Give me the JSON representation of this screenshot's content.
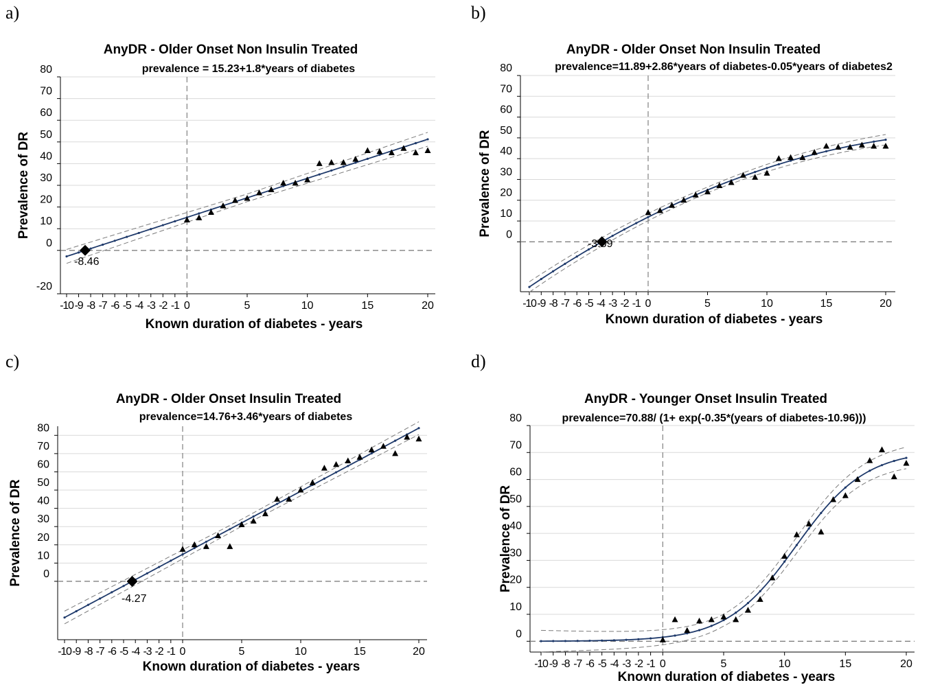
{
  "panels": [
    {
      "letter": "a)"
    },
    {
      "letter": "b)"
    },
    {
      "letter": "c)"
    },
    {
      "letter": "d)"
    }
  ],
  "colors": {
    "fit_line": "#1f3a6b",
    "ci_line": "#7a7a7a",
    "grid": "#d9d9d9",
    "observed_marker": "#000000",
    "reference_line": "#808080"
  },
  "chart_data": [
    {
      "type": "line",
      "title": "AnyDR - Older Onset Non Insulin Treated",
      "subtitle": "prevalence = 15.23+1.8*years of diabetes",
      "xlabel": "Known duration of diabetes - years",
      "ylabel": "Prevalence of DR",
      "xlim": [
        -10,
        20
      ],
      "ylim": [
        -20,
        80
      ],
      "x_ticks": [
        -10,
        -9,
        -8,
        -7,
        -6,
        -5,
        -4,
        -3,
        -2,
        -1,
        0,
        5,
        10,
        15,
        20
      ],
      "x_tick_labels": [
        "-10",
        "-9",
        "-8",
        "-7",
        "-6",
        "-5",
        "-4",
        "-3",
        "-2",
        "-1",
        "0",
        "5",
        "10",
        "15",
        "20"
      ],
      "y_ticks": [
        -20,
        0,
        10,
        20,
        30,
        40,
        50,
        60,
        70,
        80
      ],
      "y_tick_labels": [
        "-20",
        "0",
        "10",
        "20",
        "30",
        "40",
        "50",
        "60",
        "70",
        "80"
      ],
      "grid": true,
      "reference_lines": {
        "x": 0,
        "y": 0
      },
      "annotation": {
        "x": -8.46,
        "y": 0,
        "label": "-8.46"
      },
      "fit_model": "linear",
      "series": [
        {
          "kind": "fit",
          "coefficients": [
            15.23,
            1.8
          ],
          "x_from": -10,
          "x_to": 20,
          "ci_width": 3.2
        },
        {
          "kind": "observed",
          "x": [
            0,
            1,
            2,
            3,
            4,
            5,
            6,
            7,
            8,
            9,
            10,
            11,
            12,
            13,
            14,
            15,
            16,
            17,
            18,
            19,
            20
          ],
          "y": [
            14,
            15,
            17.5,
            20.5,
            23,
            24,
            26.5,
            28,
            31,
            31,
            32.5,
            40,
            40.5,
            40.5,
            42,
            46,
            45.5,
            45,
            47,
            45,
            46
          ]
        }
      ]
    },
    {
      "type": "line",
      "title": "AnyDR - Older Onset Non Insulin Treated",
      "subtitle": "prevalence=11.89+2.86*years of diabetes-0.05*years of diabetes2",
      "xlabel": "Known duration of diabetes - years",
      "ylabel": "Prevalence of DR",
      "xlim": [
        -10,
        20
      ],
      "ylim": [
        -24,
        80
      ],
      "x_ticks": [
        -10,
        -9,
        -8,
        -7,
        -6,
        -5,
        -4,
        -3,
        -2,
        -1,
        0,
        5,
        10,
        15,
        20
      ],
      "x_tick_labels": [
        "-10",
        "-9",
        "-8",
        "-7",
        "-6",
        "-5",
        "-4",
        "-3",
        "-2",
        "-1",
        "0",
        "5",
        "10",
        "15",
        "20"
      ],
      "y_ticks": [
        0,
        10,
        20,
        30,
        40,
        50,
        60,
        70,
        80
      ],
      "y_tick_labels": [
        "0",
        "10",
        "20",
        "30",
        "40",
        "50",
        "60",
        "70",
        "80"
      ],
      "grid": true,
      "reference_lines": {
        "x": 0,
        "y": 0
      },
      "annotation": {
        "x": -3.89,
        "y": 0,
        "label": "-3.89"
      },
      "fit_model": "quadratic",
      "series": [
        {
          "kind": "fit",
          "coefficients": [
            11.89,
            2.86,
            -0.05
          ],
          "x_from": -10,
          "x_to": 20,
          "ci_width": 2.5
        },
        {
          "kind": "observed",
          "x": [
            0,
            1,
            2,
            3,
            4,
            5,
            6,
            7,
            8,
            9,
            10,
            11,
            12,
            13,
            14,
            15,
            16,
            17,
            18,
            19,
            20
          ],
          "y": [
            14,
            15,
            17.5,
            20,
            22.5,
            24,
            27,
            28.5,
            32,
            31,
            33,
            40,
            40.5,
            40.5,
            43,
            46,
            45.5,
            45.5,
            46.5,
            46,
            46
          ]
        }
      ]
    },
    {
      "type": "line",
      "title": "AnyDR - Older Onset Insulin Treated",
      "subtitle": "prevalence=14.76+3.46*years of diabetes",
      "xlabel": "Known duration of diabetes - years",
      "ylabel": "Prevalence of DR",
      "xlim": [
        -10,
        20
      ],
      "ylim": [
        -32,
        85
      ],
      "x_ticks": [
        -10,
        -9,
        -8,
        -7,
        -6,
        -5,
        -4,
        -3,
        -2,
        -1,
        0,
        5,
        10,
        15,
        20
      ],
      "x_tick_labels": [
        "-10",
        "-9",
        "-8",
        "-7",
        "-6",
        "-5",
        "-4",
        "-3",
        "-2",
        "-1",
        "0",
        "5",
        "10",
        "15",
        "20"
      ],
      "y_ticks": [
        0,
        10,
        20,
        30,
        40,
        50,
        60,
        70,
        80
      ],
      "y_tick_labels": [
        "0",
        "10",
        "20",
        "30",
        "40",
        "50",
        "60",
        "70",
        "80"
      ],
      "grid": true,
      "reference_lines": {
        "x": 0,
        "y": 0
      },
      "annotation": {
        "x": -4.27,
        "y": 0,
        "label": "-4.27"
      },
      "fit_model": "linear",
      "series": [
        {
          "kind": "fit",
          "coefficients": [
            14.76,
            3.46
          ],
          "x_from": -10,
          "x_to": 20,
          "ci_width": 3.5
        },
        {
          "kind": "observed",
          "x": [
            0,
            1,
            2,
            3,
            4,
            5,
            6,
            7,
            8,
            9,
            10,
            11,
            12,
            13,
            14,
            15,
            16,
            17,
            18,
            19,
            20
          ],
          "y": [
            17.5,
            20,
            19,
            25,
            19,
            31,
            33,
            37,
            45,
            45,
            50,
            54,
            62,
            64,
            66,
            68,
            72,
            74,
            70,
            79,
            78
          ]
        }
      ]
    },
    {
      "type": "line",
      "title": "AnyDR - Younger Onset Insulin Treated",
      "subtitle": "prevalence=70.88/ (1+ exp(-0.35*(years of diabetes-10.96)))",
      "xlabel": "Known duration of diabetes - years",
      "ylabel": "Prevalence of DR",
      "xlim": [
        -10,
        20
      ],
      "ylim": [
        -4,
        80
      ],
      "x_ticks": [
        -10,
        -9,
        -8,
        -7,
        -6,
        -5,
        -4,
        -3,
        -2,
        -1,
        0,
        5,
        10,
        15,
        20
      ],
      "x_tick_labels": [
        "-10",
        "-9",
        "-8",
        "-7",
        "-6",
        "-5",
        "-4",
        "-3",
        "-2",
        "-1",
        "0",
        "5",
        "10",
        "15",
        "20"
      ],
      "y_ticks": [
        0,
        10,
        20,
        30,
        40,
        50,
        60,
        70,
        80
      ],
      "y_tick_labels": [
        "0",
        "10",
        "20",
        "30",
        "40",
        "50",
        "60",
        "70",
        "80"
      ],
      "grid": true,
      "reference_lines": {
        "x": 0,
        "y": 0
      },
      "fit_model": "logistic",
      "series": [
        {
          "kind": "fit",
          "coefficients": [
            70.88,
            0.35,
            10.96
          ],
          "x_from": -10,
          "x_to": 20,
          "ci_width": 4
        },
        {
          "kind": "observed",
          "x": [
            0,
            1,
            2,
            3,
            4,
            5,
            6,
            7,
            8,
            9,
            10,
            11,
            12,
            13,
            14,
            15,
            16,
            17,
            18,
            19,
            20
          ],
          "y": [
            0.5,
            8,
            4,
            7.5,
            8,
            9,
            8,
            11.5,
            15.5,
            23.5,
            31.5,
            39.5,
            43.5,
            40.5,
            52.5,
            54,
            60,
            67,
            71,
            61,
            66
          ]
        }
      ]
    }
  ]
}
